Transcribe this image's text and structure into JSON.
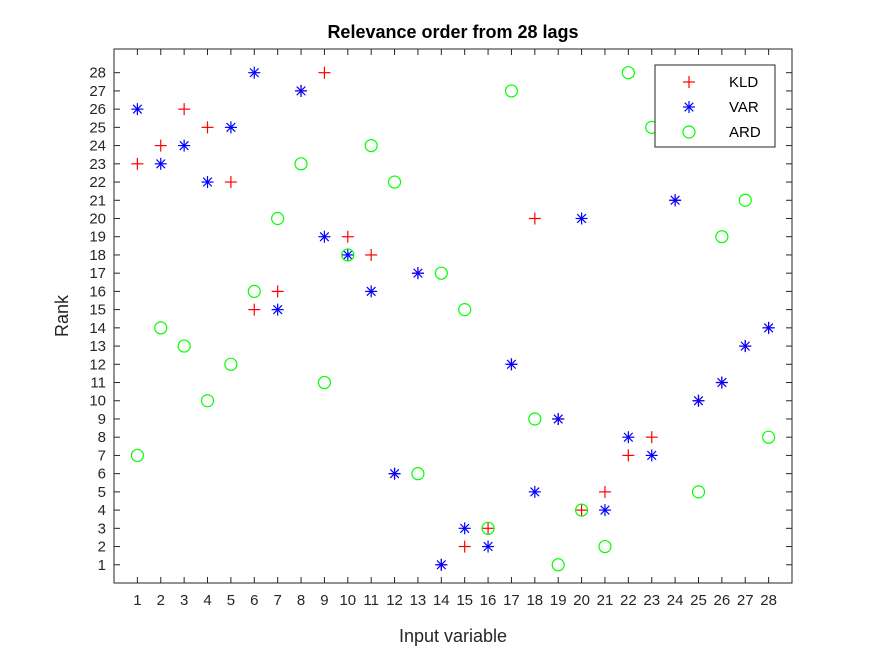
{
  "chart_data": {
    "type": "scatter",
    "title": "Relevance order from 28 lags",
    "xlabel": "Input variable",
    "ylabel": "Rank",
    "xlim": [
      0,
      29
    ],
    "ylim": [
      0,
      29.3
    ],
    "xticks": [
      "1",
      "2",
      "3",
      "4",
      "5",
      "6",
      "7",
      "8",
      "9",
      "10",
      "11",
      "12",
      "13",
      "14",
      "15",
      "16",
      "17",
      "18",
      "19",
      "20",
      "21",
      "22",
      "23",
      "24",
      "25",
      "26",
      "27",
      "28"
    ],
    "yticks": [
      "1",
      "2",
      "3",
      "4",
      "5",
      "6",
      "7",
      "8",
      "9",
      "10",
      "11",
      "12",
      "13",
      "14",
      "15",
      "16",
      "17",
      "18",
      "19",
      "20",
      "21",
      "22",
      "23",
      "24",
      "25",
      "26",
      "27",
      "28"
    ],
    "grid": false,
    "legend_position": "top-right",
    "series": [
      {
        "name": "KLD",
        "marker": "plus",
        "color": "#ff0000",
        "x": [
          1,
          2,
          3,
          4,
          5,
          6,
          7,
          8,
          9,
          10,
          11,
          12,
          13,
          14,
          15,
          16,
          17,
          18,
          19,
          20,
          21,
          22,
          23,
          24,
          25,
          26,
          27,
          28
        ],
        "y": [
          23,
          24,
          26,
          25,
          22,
          15,
          16,
          27,
          28,
          19,
          18,
          6,
          17,
          1,
          2,
          3,
          12,
          20,
          9,
          4,
          5,
          7,
          8,
          21,
          10,
          11,
          13,
          14
        ]
      },
      {
        "name": "VAR",
        "marker": "asterisk",
        "color": "#0000ff",
        "x": [
          1,
          2,
          3,
          4,
          5,
          6,
          7,
          8,
          9,
          10,
          11,
          12,
          13,
          14,
          15,
          16,
          17,
          18,
          19,
          20,
          21,
          22,
          23,
          24,
          25,
          26,
          27,
          28
        ],
        "y": [
          26,
          23,
          24,
          22,
          25,
          28,
          15,
          27,
          19,
          18,
          16,
          6,
          17,
          1,
          3,
          2,
          12,
          5,
          9,
          20,
          4,
          8,
          7,
          21,
          10,
          11,
          13,
          14
        ]
      },
      {
        "name": "ARD",
        "marker": "circle",
        "color": "#00ff00",
        "x": [
          1,
          2,
          3,
          4,
          5,
          6,
          7,
          8,
          9,
          10,
          11,
          12,
          13,
          14,
          15,
          16,
          17,
          18,
          19,
          20,
          21,
          22,
          23,
          24,
          25,
          26,
          27,
          28
        ],
        "y": [
          7,
          14,
          13,
          10,
          12,
          16,
          20,
          23,
          11,
          18,
          24,
          22,
          6,
          17,
          15,
          3,
          27,
          9,
          1,
          4,
          2,
          28,
          25,
          26,
          5,
          19,
          21,
          8
        ]
      }
    ]
  }
}
